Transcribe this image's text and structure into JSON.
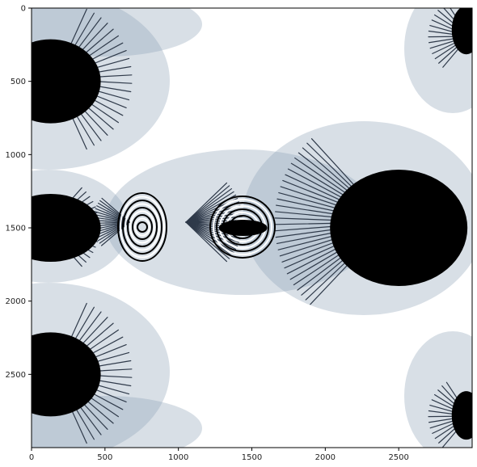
{
  "chart_data": {
    "type": "heatmap",
    "title": "",
    "xlabel": "",
    "ylabel": "",
    "xlim": [
      0,
      3000
    ],
    "ylim": [
      3000,
      0
    ],
    "x_ticks": [
      0,
      500,
      1000,
      1500,
      2000,
      2500
    ],
    "y_ticks": [
      0,
      500,
      1000,
      1500,
      2000,
      2500
    ],
    "x_tick_labels": [
      "0",
      "500",
      "1000",
      "1500",
      "2000",
      "2500"
    ],
    "y_tick_labels": [
      "0",
      "500",
      "1000",
      "1500",
      "2000",
      "2500"
    ],
    "grid": false,
    "image_description_colors": {
      "interior": "#000000",
      "exterior": "#ffffff",
      "fringe": "#8fa3b6"
    }
  }
}
